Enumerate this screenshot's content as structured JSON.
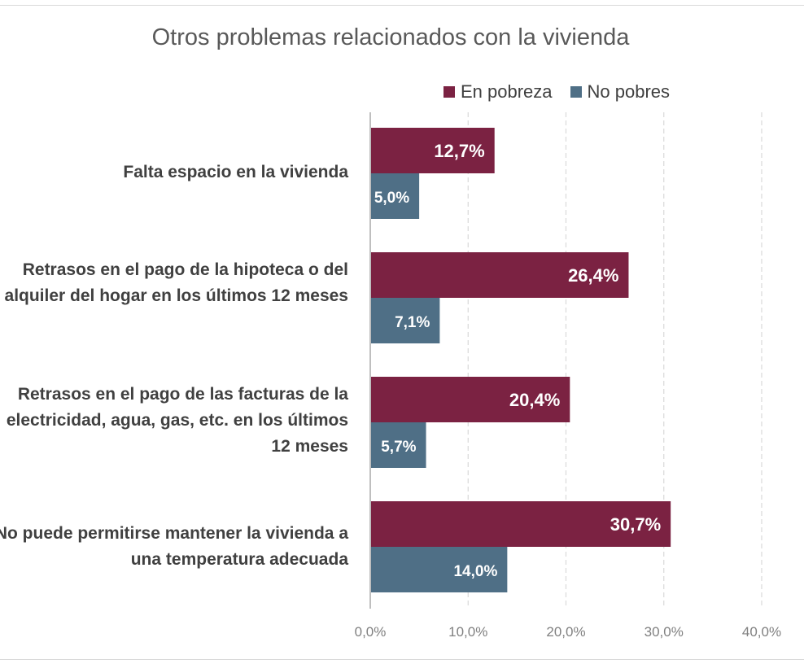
{
  "chart_data": {
    "type": "bar",
    "orientation": "horizontal",
    "title": "Otros problemas relacionados con la vivienda",
    "categories": [
      "Falta espacio en la vivienda",
      "Retrasos en el pago de la hipoteca o del alquiler del hogar en los últimos 12 meses",
      "Retrasos en el pago de las facturas de la electricidad, agua, gas, etc. en los últimos 12 meses",
      "No puede permitirse mantener la vivienda a una temperatura adecuada"
    ],
    "series": [
      {
        "name": "En pobreza",
        "color": "#7b2242",
        "values": [
          12.7,
          26.4,
          20.4,
          30.7
        ],
        "labels": [
          "12,7%",
          "26,4%",
          "20,4%",
          "30,7%"
        ]
      },
      {
        "name": "No pobres",
        "color": "#4f6f86",
        "values": [
          5.0,
          7.1,
          5.7,
          14.0
        ],
        "labels": [
          "5,0%",
          "7,1%",
          "5,7%",
          "14,0%"
        ]
      }
    ],
    "xlim": [
      0,
      40
    ],
    "ticks": [
      0,
      10,
      20,
      30,
      40
    ],
    "tick_labels": [
      "0,0%",
      "10,0%",
      "20,0%",
      "30,0%",
      "40,0%"
    ],
    "grid": true,
    "legend_position": "top-right"
  }
}
